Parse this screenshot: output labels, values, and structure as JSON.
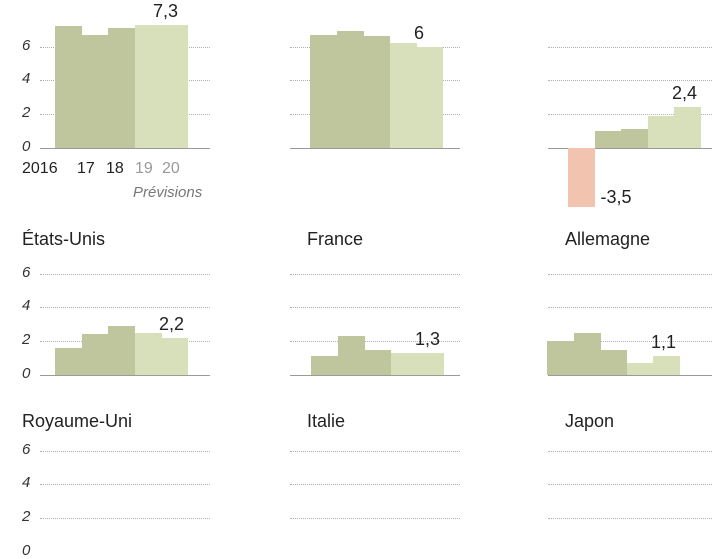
{
  "colors": {
    "actual": "#bfc69e",
    "forecast": "#d8dfbb",
    "negative": "#f2c4b0"
  },
  "axis": {
    "ticks": [
      "0",
      "2",
      "4",
      "6"
    ],
    "x_labels": [
      "2016",
      "17",
      "18",
      "19",
      "20"
    ],
    "forecast_note": "Prévisions"
  },
  "chart_data": [
    {
      "type": "bar",
      "title": "",
      "categories": [
        "2016",
        "17",
        "18",
        "19",
        "20"
      ],
      "values": [
        7.2,
        6.7,
        7.1,
        7.3,
        7.3
      ],
      "label": "7,3",
      "ylim": [
        0,
        6
      ],
      "forecast_from": "19"
    },
    {
      "type": "bar",
      "title": "",
      "categories": [
        "2016",
        "17",
        "18",
        "19",
        "20"
      ],
      "values": [
        6.7,
        6.9,
        6.6,
        6.2,
        6.0
      ],
      "label": "6",
      "forecast_from": "19"
    },
    {
      "type": "bar",
      "title": "",
      "categories": [
        "2016",
        "17",
        "18",
        "19",
        "20"
      ],
      "values": [
        -3.5,
        1.0,
        1.1,
        1.9,
        2.4
      ],
      "label": "2,4",
      "neg_label": "-3,5",
      "forecast_from": "19"
    },
    {
      "type": "bar",
      "title": "États-Unis",
      "categories": [
        "2016",
        "17",
        "18",
        "19",
        "20"
      ],
      "values": [
        1.6,
        2.4,
        2.9,
        2.5,
        2.2
      ],
      "label": "2,2",
      "forecast_from": "19"
    },
    {
      "type": "bar",
      "title": "France",
      "categories": [
        "2016",
        "17",
        "18",
        "19",
        "20"
      ],
      "values": [
        1.1,
        2.3,
        1.5,
        1.3,
        1.3
      ],
      "label": "1,3",
      "forecast_from": "19"
    },
    {
      "type": "bar",
      "title": "Allemagne",
      "categories": [
        "2016",
        "17",
        "18",
        "19",
        "20"
      ],
      "values": [
        2.0,
        2.5,
        1.5,
        0.7,
        1.1
      ],
      "label": "1,1",
      "forecast_from": "19"
    },
    {
      "type": "bar",
      "title": "Royaume-Uni",
      "categories": [],
      "values": []
    },
    {
      "type": "bar",
      "title": "Italie",
      "categories": [],
      "values": []
    },
    {
      "type": "bar",
      "title": "Japon",
      "categories": [],
      "values": []
    }
  ],
  "titles": {
    "us": "États-Unis",
    "fr": "France",
    "de": "Allemagne",
    "uk": "Royaume-Uni",
    "it": "Italie",
    "jp": "Japon"
  },
  "labels": {
    "c0": "7,3",
    "c1": "6",
    "c2": "2,4",
    "c2neg": "-3,5",
    "us": "2,2",
    "fr": "1,3",
    "de": "1,1"
  }
}
